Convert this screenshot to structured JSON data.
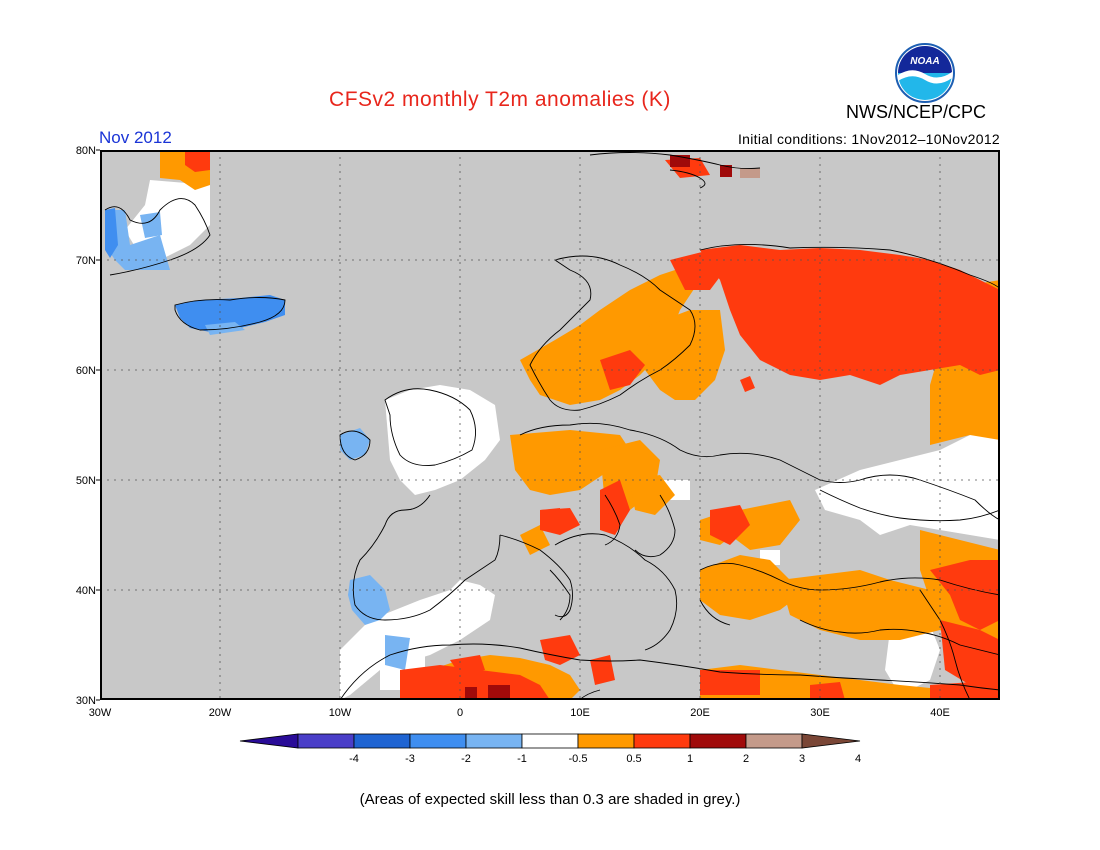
{
  "header": {
    "title": "CFSv2 monthly T2m anomalies (K)",
    "agency": "NWS/NCEP/CPC",
    "month": "Nov 2012",
    "initial_conditions": "Initial conditions: 1Nov2012–10Nov2012"
  },
  "logo": {
    "text": "NOAA"
  },
  "map": {
    "lon_range": [
      -30,
      45
    ],
    "lat_range": [
      30,
      80
    ],
    "gridlines": true,
    "background_color": "#c8c8c8",
    "lat_labels": [
      "80N",
      "70N",
      "60N",
      "50N",
      "40N",
      "30N"
    ],
    "lon_labels": [
      "30W",
      "20W",
      "10W",
      "0",
      "10E",
      "20E",
      "30E",
      "40E"
    ]
  },
  "colorbar": {
    "labels": [
      "-4",
      "-3",
      "-2",
      "-1",
      "-0.5",
      "0.5",
      "1",
      "2",
      "3",
      "4"
    ],
    "colors": [
      "#2a0c98",
      "#4a3ec8",
      "#1f64d2",
      "#3f8ef0",
      "#78b4f2",
      "#ffffff",
      "#ff9900",
      "#ff3a0e",
      "#a00a0a",
      "#c49a8a",
      "#7a4636"
    ]
  },
  "footnote": "(Areas of expected skill less than 0.3 are shaded in grey.)"
}
